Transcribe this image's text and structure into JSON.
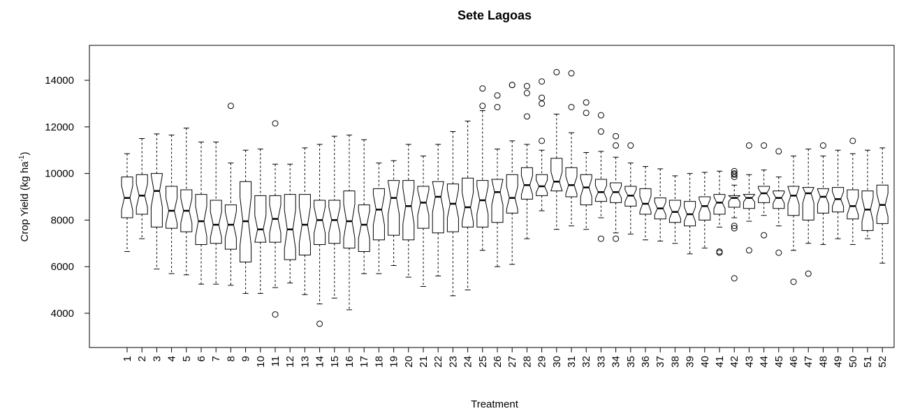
{
  "chart_data": {
    "type": "boxplot",
    "title": "Sete Lagoas",
    "x_label": "Treatment",
    "y_label": {
      "text": "Crop Yield (kg ha",
      "sup": "-1",
      "end": ")"
    },
    "ylim": [
      2530,
      15500
    ],
    "yticks": [
      4000,
      6000,
      8000,
      10000,
      12000,
      14000
    ],
    "categories": [
      "1",
      "2",
      "3",
      "4",
      "5",
      "6",
      "7",
      "8",
      "9",
      "10",
      "11",
      "12",
      "13",
      "14",
      "15",
      "16",
      "17",
      "18",
      "19",
      "20",
      "21",
      "22",
      "23",
      "24",
      "25",
      "26",
      "27",
      "28",
      "29",
      "30",
      "31",
      "32",
      "33",
      "34",
      "35",
      "36",
      "37",
      "38",
      "39",
      "40",
      "41",
      "42",
      "43",
      "44",
      "45",
      "46",
      "47",
      "48",
      "49",
      "50",
      "51",
      "52"
    ],
    "boxes": [
      {
        "low": 6650,
        "q1": 8100,
        "median": 8950,
        "q3": 9850,
        "high": 10850,
        "outliers": []
      },
      {
        "low": 7200,
        "q1": 8250,
        "median": 9050,
        "q3": 9950,
        "high": 11500,
        "outliers": []
      },
      {
        "low": 5900,
        "q1": 7700,
        "median": 9250,
        "q3": 10000,
        "high": 11700,
        "outliers": []
      },
      {
        "low": 5700,
        "q1": 7650,
        "median": 8400,
        "q3": 9450,
        "high": 11650,
        "outliers": []
      },
      {
        "low": 5650,
        "q1": 7500,
        "median": 8400,
        "q3": 9300,
        "high": 11950,
        "outliers": []
      },
      {
        "low": 5250,
        "q1": 6950,
        "median": 7950,
        "q3": 9100,
        "high": 11350,
        "outliers": []
      },
      {
        "low": 5250,
        "q1": 7000,
        "median": 7800,
        "q3": 8850,
        "high": 11350,
        "outliers": []
      },
      {
        "low": 5200,
        "q1": 6750,
        "median": 7800,
        "q3": 8650,
        "high": 10450,
        "outliers": [
          12900
        ]
      },
      {
        "low": 4850,
        "q1": 6200,
        "median": 7950,
        "q3": 9650,
        "high": 11000,
        "outliers": []
      },
      {
        "low": 4850,
        "q1": 7050,
        "median": 7600,
        "q3": 9050,
        "high": 11050,
        "outliers": []
      },
      {
        "low": 5100,
        "q1": 7050,
        "median": 8050,
        "q3": 9050,
        "high": 10400,
        "outliers": [
          12150,
          3950
        ]
      },
      {
        "low": 5300,
        "q1": 6300,
        "median": 7600,
        "q3": 9100,
        "high": 10400,
        "outliers": []
      },
      {
        "low": 4800,
        "q1": 6500,
        "median": 7800,
        "q3": 9100,
        "high": 11100,
        "outliers": []
      },
      {
        "low": 4400,
        "q1": 6950,
        "median": 8000,
        "q3": 8850,
        "high": 11250,
        "outliers": [
          3550
        ]
      },
      {
        "low": 4650,
        "q1": 7000,
        "median": 8000,
        "q3": 8850,
        "high": 11600,
        "outliers": []
      },
      {
        "low": 4150,
        "q1": 6800,
        "median": 7950,
        "q3": 9250,
        "high": 11650,
        "outliers": []
      },
      {
        "low": 5700,
        "q1": 6650,
        "median": 7800,
        "q3": 8650,
        "high": 11450,
        "outliers": []
      },
      {
        "low": 5700,
        "q1": 7150,
        "median": 8450,
        "q3": 9350,
        "high": 10450,
        "outliers": []
      },
      {
        "low": 6050,
        "q1": 7350,
        "median": 8950,
        "q3": 9700,
        "high": 10550,
        "outliers": []
      },
      {
        "low": 5550,
        "q1": 7150,
        "median": 8600,
        "q3": 9700,
        "high": 11250,
        "outliers": []
      },
      {
        "low": 5150,
        "q1": 7650,
        "median": 8750,
        "q3": 9450,
        "high": 10750,
        "outliers": []
      },
      {
        "low": 5600,
        "q1": 7450,
        "median": 9000,
        "q3": 9650,
        "high": 11250,
        "outliers": []
      },
      {
        "low": 4750,
        "q1": 7500,
        "median": 8700,
        "q3": 9550,
        "high": 11800,
        "outliers": []
      },
      {
        "low": 5000,
        "q1": 7700,
        "median": 8550,
        "q3": 9800,
        "high": 12250,
        "outliers": []
      },
      {
        "low": 6700,
        "q1": 7700,
        "median": 8850,
        "q3": 9700,
        "high": 12700,
        "outliers": [
          13650,
          12900
        ]
      },
      {
        "low": 6000,
        "q1": 7900,
        "median": 9200,
        "q3": 9750,
        "high": 11050,
        "outliers": [
          13350,
          12850
        ]
      },
      {
        "low": 6100,
        "q1": 8300,
        "median": 8950,
        "q3": 9950,
        "high": 11400,
        "outliers": [
          13800,
          13800
        ]
      },
      {
        "low": 7200,
        "q1": 8900,
        "median": 9500,
        "q3": 10250,
        "high": 11250,
        "outliers": [
          13750,
          13450,
          12450
        ]
      },
      {
        "low": 8400,
        "q1": 9050,
        "median": 9450,
        "q3": 9950,
        "high": 11000,
        "outliers": [
          13950,
          13250,
          13000,
          11400
        ]
      },
      {
        "low": 7600,
        "q1": 9250,
        "median": 9650,
        "q3": 10650,
        "high": 12550,
        "outliers": [
          14350
        ]
      },
      {
        "low": 7750,
        "q1": 9000,
        "median": 9500,
        "q3": 10250,
        "high": 11750,
        "outliers": [
          14300,
          12850
        ]
      },
      {
        "low": 7600,
        "q1": 8650,
        "median": 9400,
        "q3": 9950,
        "high": 10900,
        "outliers": [
          13050,
          12600
        ]
      },
      {
        "low": 8100,
        "q1": 8800,
        "median": 9200,
        "q3": 9750,
        "high": 10950,
        "outliers": [
          12500,
          11800,
          7200
        ]
      },
      {
        "low": 7450,
        "q1": 8750,
        "median": 9200,
        "q3": 9600,
        "high": 10700,
        "outliers": [
          11600,
          11200,
          7200
        ]
      },
      {
        "low": 7400,
        "q1": 8600,
        "median": 9050,
        "q3": 9450,
        "high": 10450,
        "outliers": [
          11200
        ]
      },
      {
        "low": 7150,
        "q1": 8250,
        "median": 8700,
        "q3": 9350,
        "high": 10300,
        "outliers": []
      },
      {
        "low": 7100,
        "q1": 8050,
        "median": 8500,
        "q3": 8950,
        "high": 10200,
        "outliers": []
      },
      {
        "low": 7000,
        "q1": 7900,
        "median": 8350,
        "q3": 8850,
        "high": 9900,
        "outliers": []
      },
      {
        "low": 6550,
        "q1": 7750,
        "median": 8250,
        "q3": 8800,
        "high": 10000,
        "outliers": []
      },
      {
        "low": 6800,
        "q1": 8000,
        "median": 8600,
        "q3": 9000,
        "high": 10050,
        "outliers": []
      },
      {
        "low": 7700,
        "q1": 8250,
        "median": 8750,
        "q3": 9100,
        "high": 10100,
        "outliers": [
          6650,
          6600
        ]
      },
      {
        "low": 8100,
        "q1": 8550,
        "median": 8950,
        "q3": 9050,
        "high": 9500,
        "outliers": [
          10100,
          10000,
          9950,
          9850,
          7750,
          7650,
          5500
        ]
      },
      {
        "low": 7950,
        "q1": 8500,
        "median": 8950,
        "q3": 9100,
        "high": 9950,
        "outliers": [
          11200,
          6700
        ]
      },
      {
        "low": 8200,
        "q1": 8750,
        "median": 9150,
        "q3": 9450,
        "high": 10150,
        "outliers": [
          11200,
          7350
        ]
      },
      {
        "low": 7750,
        "q1": 8500,
        "median": 8950,
        "q3": 9250,
        "high": 9850,
        "outliers": [
          10950,
          6600
        ]
      },
      {
        "low": 6700,
        "q1": 8200,
        "median": 9050,
        "q3": 9450,
        "high": 10750,
        "outliers": [
          5350
        ]
      },
      {
        "low": 7000,
        "q1": 8000,
        "median": 9150,
        "q3": 9400,
        "high": 11050,
        "outliers": [
          5700
        ]
      },
      {
        "low": 6950,
        "q1": 8300,
        "median": 9000,
        "q3": 9350,
        "high": 10750,
        "outliers": [
          11200
        ]
      },
      {
        "low": 7200,
        "q1": 8350,
        "median": 8900,
        "q3": 9400,
        "high": 11000,
        "outliers": []
      },
      {
        "low": 6950,
        "q1": 8050,
        "median": 8600,
        "q3": 9300,
        "high": 10850,
        "outliers": [
          11400
        ]
      },
      {
        "low": 7200,
        "q1": 7550,
        "median": 8450,
        "q3": 9250,
        "high": 11000,
        "outliers": []
      },
      {
        "low": 6150,
        "q1": 7850,
        "median": 8650,
        "q3": 9500,
        "high": 11100,
        "outliers": []
      }
    ]
  }
}
